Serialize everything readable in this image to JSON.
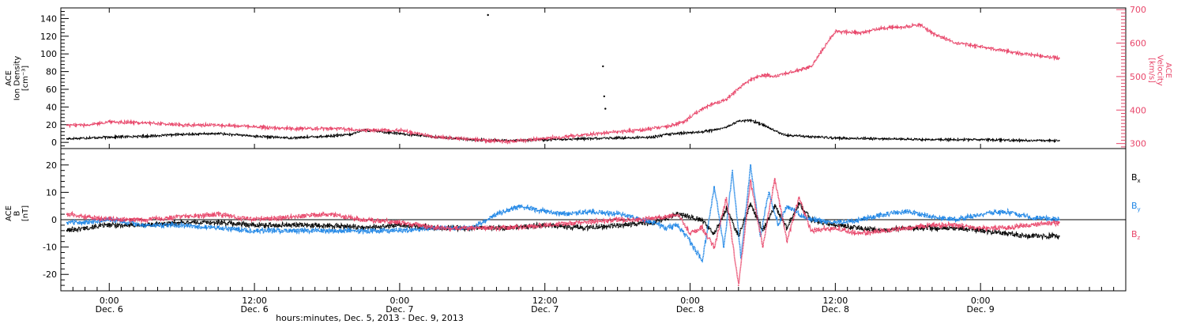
{
  "chart_data": [
    {
      "type": "scatter",
      "panel": "top",
      "left_axis": {
        "label_lines": [
          "ACE",
          "Ion Density",
          "[cm⁻³]"
        ],
        "ylim": [
          -7,
          152
        ],
        "ticks": [
          0,
          20,
          40,
          60,
          80,
          100,
          120,
          140
        ],
        "color": "#000000"
      },
      "right_axis": {
        "label_lines": [
          "ACE",
          "Velocity",
          "[km/s]"
        ],
        "ylim": [
          285,
          705
        ],
        "ticks": [
          300,
          400,
          500,
          600,
          700
        ],
        "color": "#e8466a"
      },
      "series": [
        {
          "color": "#000000",
          "axis": "left",
          "x": [
            -3.5,
            0,
            3,
            6,
            9,
            12,
            15,
            18,
            20,
            21,
            24,
            27,
            30,
            33,
            36,
            39,
            42,
            45,
            46,
            48,
            49,
            50,
            51,
            52,
            53,
            54,
            55,
            56,
            60,
            64,
            68,
            72,
            76,
            78.5
          ],
          "y": [
            4,
            6,
            7,
            9,
            10,
            7,
            5,
            7,
            9,
            14,
            10,
            6,
            3,
            2,
            3,
            4,
            5,
            6,
            9,
            11,
            12,
            14,
            17,
            24,
            25,
            20,
            13,
            8,
            5,
            4,
            3,
            3,
            2,
            2
          ]
        },
        {
          "color": "#e8466a",
          "axis": "right",
          "x": [
            -3.5,
            -2,
            0,
            3,
            6,
            9,
            12,
            15,
            18,
            21,
            24,
            27,
            30,
            33,
            36,
            39,
            42,
            44,
            46,
            47.5,
            49,
            50,
            51,
            52,
            53,
            54,
            55,
            56,
            57,
            58,
            60,
            62,
            64,
            66,
            67,
            68,
            70,
            72,
            75,
            78.5
          ],
          "y": [
            355,
            355,
            365,
            362,
            355,
            355,
            350,
            345,
            345,
            340,
            340,
            320,
            312,
            305,
            315,
            325,
            335,
            340,
            350,
            365,
            405,
            420,
            432,
            465,
            490,
            505,
            500,
            510,
            520,
            530,
            635,
            630,
            645,
            650,
            655,
            630,
            600,
            590,
            570,
            555
          ]
        },
        {
          "color": "#000000",
          "axis": "left",
          "mode": "points",
          "x": [
            31.3,
            40.8,
            40.9,
            41.0
          ],
          "y": [
            144,
            86,
            52,
            38
          ]
        }
      ]
    },
    {
      "type": "scatter",
      "panel": "bottom",
      "left_axis": {
        "label_lines": [
          "ACE",
          "B",
          "[nT]"
        ],
        "ylim": [
          -26,
          26
        ],
        "ticks": [
          -20,
          -10,
          0,
          10,
          20
        ],
        "color": "#000000"
      },
      "zero_line": true,
      "legend": {
        "placement": "right",
        "items": [
          {
            "base": "B",
            "sub": "x",
            "color": "#000000"
          },
          {
            "base": "B",
            "sub": "y",
            "color": "#1f86e6"
          },
          {
            "base": "B",
            "sub": "z",
            "color": "#e8466a"
          }
        ]
      },
      "series": [
        {
          "name": "Bx",
          "color": "#000000",
          "x": [
            -3.5,
            -2,
            0,
            3,
            6,
            9,
            12,
            15,
            18,
            21,
            24,
            27,
            30,
            33,
            36,
            39,
            42,
            45,
            47,
            49,
            50,
            51,
            52,
            53,
            54,
            55,
            56,
            57,
            58,
            60,
            62,
            64,
            66,
            68,
            70,
            72,
            74,
            76,
            78.5
          ],
          "y": [
            -4,
            -3,
            -2,
            -2,
            -1,
            -1,
            -2,
            -2,
            -2,
            -3,
            -2,
            -3,
            -3,
            -3,
            -2,
            -3,
            -2,
            -1,
            2,
            0,
            -5,
            4,
            -6,
            6,
            -4,
            5,
            -3,
            6,
            0,
            -2,
            -3,
            -4,
            -3,
            -3,
            -3,
            -4,
            -5,
            -6,
            -6
          ]
        },
        {
          "name": "By",
          "color": "#1f86e6",
          "x": [
            -3.5,
            -2,
            0,
            3,
            6,
            9,
            12,
            15,
            18,
            21,
            24,
            27,
            30,
            32,
            34,
            36,
            38,
            40,
            42,
            44,
            45,
            46,
            47,
            48,
            49,
            50,
            50.8,
            51.5,
            52.2,
            53,
            53.8,
            54.5,
            55.3,
            56,
            57,
            58,
            60,
            62,
            64,
            66,
            68,
            70,
            72,
            74,
            76,
            78.5
          ],
          "y": [
            -1,
            -1,
            0,
            -2,
            -2,
            -3,
            -4,
            -4,
            -4,
            -4,
            -4,
            -3,
            -3,
            2,
            5,
            3,
            2,
            3,
            2,
            0,
            -1,
            -3,
            -2,
            -8,
            -15,
            12,
            -10,
            18,
            -14,
            20,
            -6,
            10,
            -2,
            5,
            2,
            0,
            -1,
            0,
            2,
            3,
            1,
            0,
            2,
            3,
            1,
            0
          ]
        },
        {
          "name": "Bz",
          "color": "#e8466a",
          "x": [
            -3.5,
            -2,
            0,
            3,
            6,
            9,
            12,
            15,
            18,
            21,
            24,
            27,
            30,
            33,
            36,
            39,
            42,
            44,
            46,
            47,
            48,
            49,
            50,
            51,
            52,
            53,
            54,
            55,
            56,
            57,
            58,
            60,
            62,
            64,
            66,
            68,
            70,
            72,
            74,
            76,
            78.5
          ],
          "y": [
            2,
            1,
            0,
            0,
            1,
            2,
            0,
            1,
            2,
            0,
            -1,
            -3,
            -3,
            -3,
            -2,
            -1,
            0,
            0,
            1,
            2,
            -5,
            -3,
            -10,
            8,
            -24,
            14,
            -10,
            15,
            -8,
            8,
            -4,
            -3,
            -5,
            -4,
            -3,
            -2,
            -2,
            -3,
            -3,
            -2,
            -1
          ]
        }
      ]
    }
  ],
  "x_axis": {
    "xlim": [
      -4,
      84
    ],
    "major_ticks": [
      0,
      12,
      24,
      36,
      48,
      60,
      72,
      84
    ],
    "minor_step": 1,
    "tick_labels": [
      {
        "x": 0,
        "time": "0:00",
        "date": "Dec. 6"
      },
      {
        "x": 12,
        "time": "12:00",
        "date": "Dec. 6"
      },
      {
        "x": 24,
        "time": "0:00",
        "date": "Dec. 7"
      },
      {
        "x": 36,
        "time": "12:00",
        "date": "Dec. 7"
      },
      {
        "x": 48,
        "time": "0:00",
        "date": "Dec. 8"
      },
      {
        "x": 60,
        "time": "12:00",
        "date": "Dec. 8"
      },
      {
        "x": 72,
        "time": "0:00",
        "date": "Dec. 9"
      }
    ],
    "label": "hours:minutes, Dec. 5, 2013 - Dec. 9, 2013"
  }
}
